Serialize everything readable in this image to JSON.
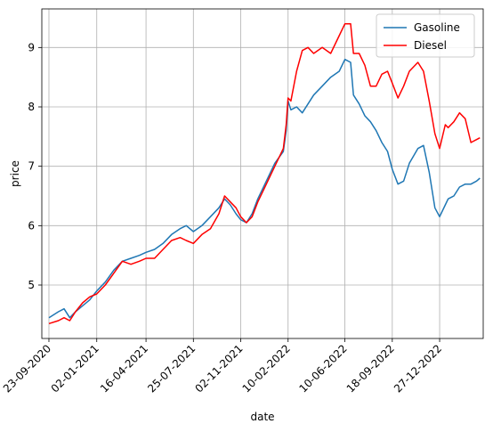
{
  "chart_data": {
    "type": "line",
    "title": "",
    "xlabel": "date",
    "ylabel": "price",
    "grid": true,
    "legend_position": "top-right",
    "x_axis": {
      "start": "2020-09-08",
      "end": "2023-03-29",
      "ticks": [
        {
          "date": "2020-09-23",
          "label": "23-09-2020"
        },
        {
          "date": "2021-01-02",
          "label": "02-01-2021"
        },
        {
          "date": "2021-04-16",
          "label": "16-04-2021"
        },
        {
          "date": "2021-07-25",
          "label": "25-07-2021"
        },
        {
          "date": "2021-11-02",
          "label": "02-11-2021"
        },
        {
          "date": "2022-02-10",
          "label": "10-02-2022"
        },
        {
          "date": "2022-06-10",
          "label": "10-06-2022"
        },
        {
          "date": "2022-09-18",
          "label": "18-09-2022"
        },
        {
          "date": "2022-12-27",
          "label": "27-12-2022"
        }
      ]
    },
    "y_axis": {
      "min": 4.1,
      "max": 9.65,
      "ticks": [
        5,
        6,
        7,
        8,
        9
      ]
    },
    "series": [
      {
        "name": "Gasoline",
        "color": "#1f77b4",
        "points": [
          [
            "2020-09-23",
            4.45
          ],
          [
            "2020-10-13",
            4.55
          ],
          [
            "2020-10-25",
            4.6
          ],
          [
            "2020-11-06",
            4.45
          ],
          [
            "2020-11-18",
            4.55
          ],
          [
            "2020-12-03",
            4.65
          ],
          [
            "2020-12-18",
            4.75
          ],
          [
            "2021-01-02",
            4.9
          ],
          [
            "2021-01-20",
            5.05
          ],
          [
            "2021-02-07",
            5.25
          ],
          [
            "2021-02-25",
            5.4
          ],
          [
            "2021-03-15",
            5.45
          ],
          [
            "2021-04-02",
            5.5
          ],
          [
            "2021-04-16",
            5.55
          ],
          [
            "2021-05-04",
            5.6
          ],
          [
            "2021-05-22",
            5.7
          ],
          [
            "2021-06-09",
            5.85
          ],
          [
            "2021-06-27",
            5.95
          ],
          [
            "2021-07-10",
            6.0
          ],
          [
            "2021-07-25",
            5.9
          ],
          [
            "2021-08-12",
            6.0
          ],
          [
            "2021-08-30",
            6.15
          ],
          [
            "2021-09-17",
            6.3
          ],
          [
            "2021-09-29",
            6.45
          ],
          [
            "2021-10-11",
            6.35
          ],
          [
            "2021-10-23",
            6.2
          ],
          [
            "2021-11-02",
            6.1
          ],
          [
            "2021-11-14",
            6.05
          ],
          [
            "2021-11-26",
            6.2
          ],
          [
            "2021-12-08",
            6.45
          ],
          [
            "2021-12-26",
            6.75
          ],
          [
            "2022-01-13",
            7.05
          ],
          [
            "2022-01-31",
            7.25
          ],
          [
            "2022-02-06",
            7.6
          ],
          [
            "2022-02-10",
            8.1
          ],
          [
            "2022-02-16",
            7.95
          ],
          [
            "2022-02-28",
            8.0
          ],
          [
            "2022-03-12",
            7.9
          ],
          [
            "2022-03-24",
            8.05
          ],
          [
            "2022-04-05",
            8.2
          ],
          [
            "2022-04-23",
            8.35
          ],
          [
            "2022-05-11",
            8.5
          ],
          [
            "2022-05-29",
            8.6
          ],
          [
            "2022-06-10",
            8.8
          ],
          [
            "2022-06-22",
            8.75
          ],
          [
            "2022-06-28",
            8.2
          ],
          [
            "2022-07-10",
            8.05
          ],
          [
            "2022-07-22",
            7.85
          ],
          [
            "2022-08-03",
            7.75
          ],
          [
            "2022-08-15",
            7.6
          ],
          [
            "2022-08-27",
            7.4
          ],
          [
            "2022-09-08",
            7.25
          ],
          [
            "2022-09-18",
            6.95
          ],
          [
            "2022-09-30",
            6.7
          ],
          [
            "2022-10-12",
            6.75
          ],
          [
            "2022-10-24",
            7.05
          ],
          [
            "2022-11-11",
            7.3
          ],
          [
            "2022-11-23",
            7.35
          ],
          [
            "2022-12-05",
            6.9
          ],
          [
            "2022-12-17",
            6.3
          ],
          [
            "2022-12-27",
            6.15
          ],
          [
            "2023-01-08",
            6.35
          ],
          [
            "2023-01-14",
            6.45
          ],
          [
            "2023-01-26",
            6.5
          ],
          [
            "2023-02-07",
            6.65
          ],
          [
            "2023-02-19",
            6.7
          ],
          [
            "2023-03-03",
            6.7
          ],
          [
            "2023-03-15",
            6.75
          ],
          [
            "2023-03-22",
            6.8
          ]
        ]
      },
      {
        "name": "Diesel",
        "color": "#ff0000",
        "points": [
          [
            "2020-09-23",
            4.35
          ],
          [
            "2020-10-13",
            4.4
          ],
          [
            "2020-10-25",
            4.45
          ],
          [
            "2020-11-06",
            4.4
          ],
          [
            "2020-11-18",
            4.55
          ],
          [
            "2020-12-03",
            4.7
          ],
          [
            "2020-12-18",
            4.8
          ],
          [
            "2021-01-02",
            4.85
          ],
          [
            "2021-01-20",
            5.0
          ],
          [
            "2021-02-07",
            5.2
          ],
          [
            "2021-02-25",
            5.4
          ],
          [
            "2021-03-15",
            5.35
          ],
          [
            "2021-04-02",
            5.4
          ],
          [
            "2021-04-16",
            5.45
          ],
          [
            "2021-05-04",
            5.45
          ],
          [
            "2021-05-22",
            5.6
          ],
          [
            "2021-06-09",
            5.75
          ],
          [
            "2021-06-27",
            5.8
          ],
          [
            "2021-07-10",
            5.75
          ],
          [
            "2021-07-25",
            5.7
          ],
          [
            "2021-08-12",
            5.85
          ],
          [
            "2021-08-30",
            5.95
          ],
          [
            "2021-09-17",
            6.2
          ],
          [
            "2021-09-29",
            6.5
          ],
          [
            "2021-10-11",
            6.4
          ],
          [
            "2021-10-23",
            6.3
          ],
          [
            "2021-11-02",
            6.15
          ],
          [
            "2021-11-14",
            6.05
          ],
          [
            "2021-11-26",
            6.15
          ],
          [
            "2021-12-08",
            6.4
          ],
          [
            "2021-12-26",
            6.7
          ],
          [
            "2022-01-13",
            7.0
          ],
          [
            "2022-01-31",
            7.3
          ],
          [
            "2022-02-06",
            7.7
          ],
          [
            "2022-02-10",
            8.15
          ],
          [
            "2022-02-16",
            8.1
          ],
          [
            "2022-02-28",
            8.6
          ],
          [
            "2022-03-12",
            8.95
          ],
          [
            "2022-03-24",
            9.0
          ],
          [
            "2022-04-05",
            8.9
          ],
          [
            "2022-04-23",
            9.0
          ],
          [
            "2022-05-11",
            8.9
          ],
          [
            "2022-05-29",
            9.2
          ],
          [
            "2022-06-10",
            9.4
          ],
          [
            "2022-06-22",
            9.4
          ],
          [
            "2022-06-28",
            8.9
          ],
          [
            "2022-07-10",
            8.9
          ],
          [
            "2022-07-22",
            8.7
          ],
          [
            "2022-08-03",
            8.35
          ],
          [
            "2022-08-15",
            8.35
          ],
          [
            "2022-08-27",
            8.55
          ],
          [
            "2022-09-08",
            8.6
          ],
          [
            "2022-09-18",
            8.4
          ],
          [
            "2022-09-30",
            8.15
          ],
          [
            "2022-10-12",
            8.35
          ],
          [
            "2022-10-24",
            8.6
          ],
          [
            "2022-11-11",
            8.75
          ],
          [
            "2022-11-23",
            8.6
          ],
          [
            "2022-12-05",
            8.1
          ],
          [
            "2022-12-17",
            7.55
          ],
          [
            "2022-12-27",
            7.3
          ],
          [
            "2023-01-08",
            7.7
          ],
          [
            "2023-01-14",
            7.65
          ],
          [
            "2023-01-26",
            7.75
          ],
          [
            "2023-02-07",
            7.9
          ],
          [
            "2023-02-19",
            7.8
          ],
          [
            "2023-03-03",
            7.4
          ],
          [
            "2023-03-15",
            7.45
          ],
          [
            "2023-03-22",
            7.48
          ]
        ]
      }
    ]
  }
}
